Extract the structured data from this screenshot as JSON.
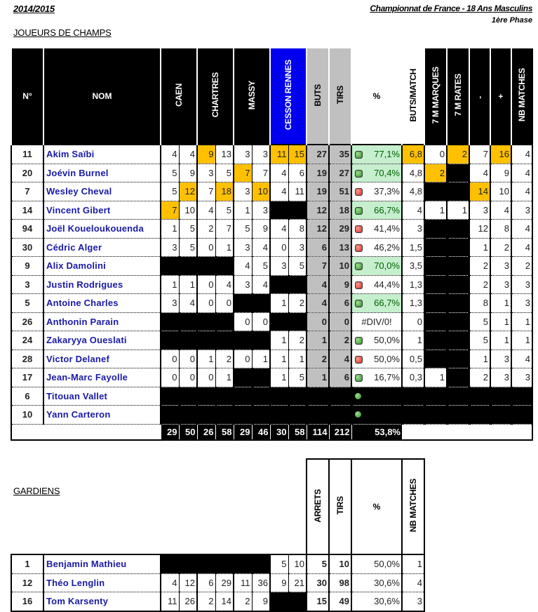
{
  "header": {
    "season": "2014/2015",
    "competition": "Championnat de France - 18 Ans Masculins",
    "phase": "1ère Phase"
  },
  "sections": {
    "players": "JOUEURS DE CHAMPS",
    "goalkeepers": "GARDIENS"
  },
  "colors": {
    "highlight": "#ffc000",
    "cesson_header": "#0000ee",
    "grey": "#c0c0c0",
    "good_pct_bg": "#c6efce",
    "name": "#1a1aa6"
  },
  "players_columns": [
    "N°",
    "NOM",
    "CAEN",
    "CHARTRES",
    "MASSY",
    "CESSON RENNES",
    "BUTS",
    "TIRS",
    "%",
    "BUTS/MATCH",
    "7 M MARQUES",
    "7 M RATES",
    "-",
    "+",
    "NB MATCHES"
  ],
  "players": [
    {
      "num": "11",
      "name": "Akim Saïbi",
      "m": [
        "4",
        "4",
        "9",
        "13",
        "3",
        "3",
        "11",
        "15"
      ],
      "hl": [
        2,
        6,
        7
      ],
      "buts": "27",
      "tirs": "35",
      "dot": "green",
      "pct": "77,1%",
      "pg": true,
      "bpm": "6,8",
      "bpm_hl": true,
      "m7": "0",
      "r7": "2",
      "r7_hl": true,
      "minus": "7",
      "plus": "16",
      "plus_hl": true,
      "nb": "4"
    },
    {
      "num": "20",
      "name": "Joévin Burnel",
      "m": [
        "5",
        "9",
        "3",
        "5",
        "7",
        "7",
        "4",
        "6"
      ],
      "hl": [
        4
      ],
      "buts": "19",
      "tirs": "27",
      "dot": "green",
      "pct": "70,4%",
      "pg": true,
      "bpm": "4,8",
      "m7": "2",
      "m7_hl": true,
      "r7": null,
      "minus": "4",
      "plus": "9",
      "nb": "4"
    },
    {
      "num": "7",
      "name": "Wesley Cheval",
      "m": [
        "5",
        "12",
        "7",
        "18",
        "3",
        "10",
        "4",
        "11"
      ],
      "hl": [
        1,
        3,
        5
      ],
      "buts": "19",
      "tirs": "51",
      "dot": "red",
      "pct": "37,3%",
      "bpm": "4,8",
      "m7": null,
      "r7": null,
      "minus": "14",
      "minus_hl": true,
      "plus": "10",
      "nb": "4"
    },
    {
      "num": "14",
      "name": "Vincent Gibert",
      "m": [
        "7",
        "10",
        "4",
        "5",
        "1",
        "3",
        null,
        null
      ],
      "hl": [
        0
      ],
      "buts": "12",
      "tirs": "18",
      "dot": "green",
      "pct": "66,7%",
      "pg": true,
      "bpm": "4",
      "m7": "1",
      "r7": "1",
      "minus": "3",
      "plus": "4",
      "nb": "3"
    },
    {
      "num": "94",
      "name": "Joël Koueloukouenda",
      "m": [
        "1",
        "5",
        "2",
        "7",
        "5",
        "9",
        "4",
        "8"
      ],
      "hl": [],
      "buts": "12",
      "tirs": "29",
      "dot": "red",
      "pct": "41,4%",
      "bpm": "3",
      "m7": null,
      "r7": null,
      "minus": "12",
      "plus": "8",
      "nb": "4"
    },
    {
      "num": "30",
      "name": "Cédric Alger",
      "m": [
        "3",
        "5",
        "0",
        "1",
        "3",
        "4",
        "0",
        "3"
      ],
      "hl": [],
      "buts": "6",
      "tirs": "13",
      "dot": "red",
      "pct": "46,2%",
      "bpm": "1,5",
      "m7": null,
      "r7": null,
      "minus": "1",
      "plus": "2",
      "nb": "4"
    },
    {
      "num": "9",
      "name": "Alix Damolini",
      "m": [
        null,
        null,
        null,
        null,
        "4",
        "5",
        "3",
        "5"
      ],
      "hl": [],
      "buts": "7",
      "tirs": "10",
      "dot": "green",
      "pct": "70,0%",
      "pg": true,
      "bpm": "3,5",
      "m7": null,
      "r7": null,
      "minus": "2",
      "plus": "3",
      "nb": "2"
    },
    {
      "num": "3",
      "name": "Justin Rodrigues",
      "m": [
        "1",
        "1",
        "0",
        "4",
        "3",
        "4",
        null,
        null
      ],
      "hl": [],
      "buts": "4",
      "tirs": "9",
      "dot": "red",
      "pct": "44,4%",
      "bpm": "1,3",
      "m7": null,
      "r7": null,
      "minus": "2",
      "plus": "3",
      "nb": "3"
    },
    {
      "num": "5",
      "name": "Antoine Charles",
      "m": [
        "3",
        "4",
        "0",
        "0",
        null,
        null,
        "1",
        "2"
      ],
      "hl": [],
      "buts": "4",
      "tirs": "6",
      "dot": "green",
      "pct": "66,7%",
      "pg": true,
      "bpm": "1,3",
      "m7": null,
      "r7": null,
      "minus": "8",
      "plus": "1",
      "nb": "3"
    },
    {
      "num": "26",
      "name": "Anthonin Parain",
      "m": [
        null,
        null,
        null,
        null,
        "0",
        "0",
        null,
        null
      ],
      "hl": [],
      "buts": "0",
      "tirs": "0",
      "dot": null,
      "pct": "#DIV/0!",
      "bpm": "0",
      "m7": null,
      "r7": null,
      "minus": "5",
      "plus": "1",
      "nb": "1"
    },
    {
      "num": "24",
      "name": "Zakaryya Oueslati",
      "m": [
        null,
        null,
        null,
        null,
        null,
        null,
        "1",
        "2"
      ],
      "hl": [],
      "buts": "1",
      "tirs": "2",
      "dot": "green",
      "pct": "50,0%",
      "bpm": "1",
      "m7": null,
      "r7": null,
      "minus": "5",
      "plus": "1",
      "nb": "1"
    },
    {
      "num": "28",
      "name": "Victor Delanef",
      "m": [
        "0",
        "0",
        "1",
        "2",
        "0",
        "1",
        "1",
        "1"
      ],
      "hl": [],
      "buts": "2",
      "tirs": "4",
      "dot": "red",
      "pct": "50,0%",
      "bpm": "0,5",
      "m7": null,
      "r7": null,
      "minus": "1",
      "plus": "3",
      "nb": "4"
    },
    {
      "num": "17",
      "name": "Jean-Marc Fayolle",
      "m": [
        "0",
        "0",
        "0",
        "1",
        null,
        null,
        "1",
        "5"
      ],
      "hl": [],
      "buts": "1",
      "tirs": "6",
      "dot": "green",
      "pct": "16,7%",
      "bpm": "0,3",
      "m7": "1",
      "r7": null,
      "minus": "2",
      "plus": "3",
      "nb": "3"
    },
    {
      "num": "6",
      "name": "Titouan Vallet",
      "blackout": true,
      "dot": "green"
    },
    {
      "num": "10",
      "name": "Yann Carteron",
      "blackout": true,
      "dot": "green"
    }
  ],
  "totals": [
    "29",
    "50",
    "26",
    "58",
    "29",
    "46",
    "30",
    "58",
    "114",
    "212",
    "53,8%"
  ],
  "gk_columns": [
    "ARRETS",
    "TIRS",
    "%",
    "NB MATCHES"
  ],
  "goalkeepers": [
    {
      "num": "1",
      "name": "Benjamin Mathieu",
      "m": [
        null,
        null,
        null,
        null,
        null,
        null,
        "5",
        "10"
      ],
      "arrets": "5",
      "tirs": "10",
      "pct": "50,0%",
      "nb": "1"
    },
    {
      "num": "12",
      "name": "Théo Lenglin",
      "m": [
        "4",
        "12",
        "6",
        "29",
        "11",
        "36",
        "9",
        "21"
      ],
      "arrets": "30",
      "tirs": "98",
      "pct": "30,6%",
      "nb": "4"
    },
    {
      "num": "16",
      "name": "Tom Karsenty",
      "m": [
        "11",
        "26",
        "2",
        "14",
        "2",
        "9",
        null,
        null
      ],
      "arrets": "15",
      "tirs": "49",
      "pct": "30,6%",
      "nb": "3"
    }
  ]
}
